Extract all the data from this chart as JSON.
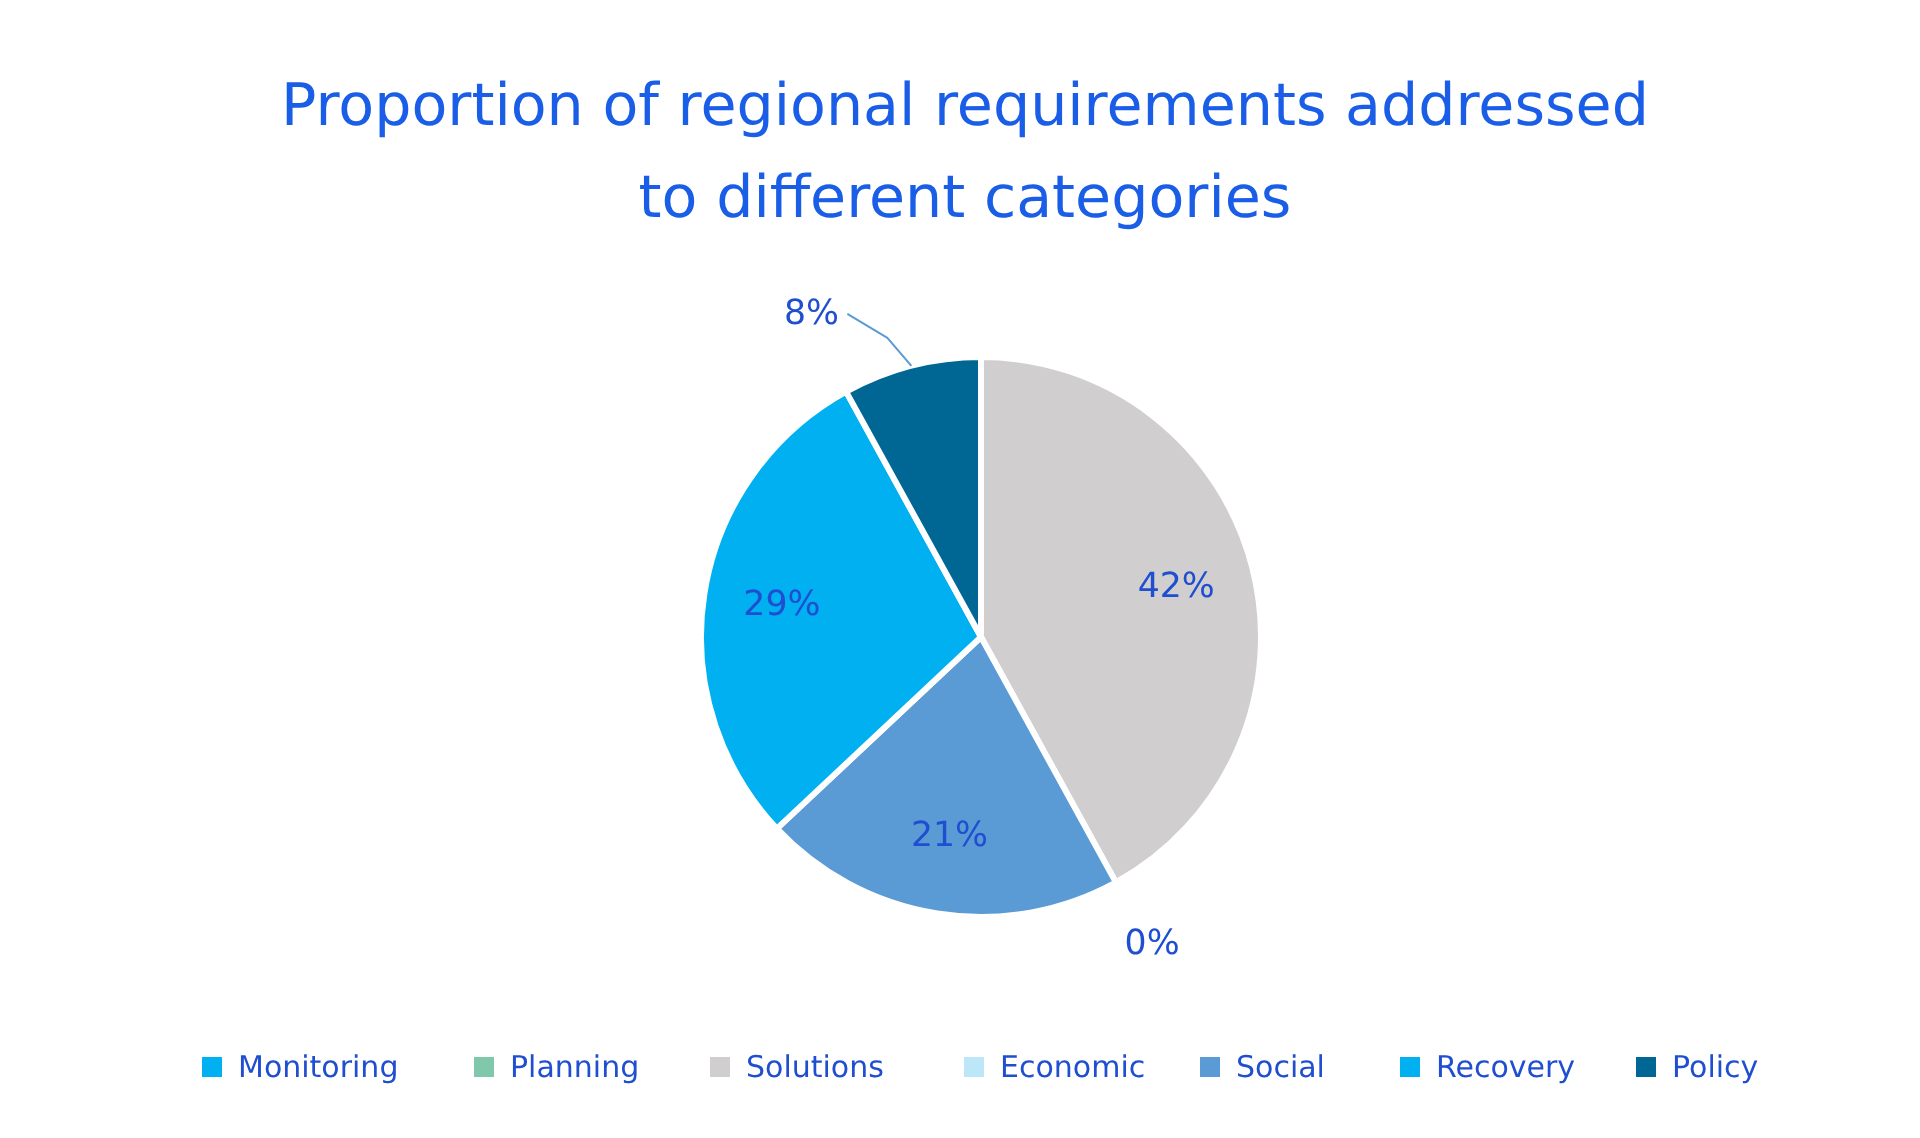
{
  "chart_data": {
    "type": "pie",
    "title": "Proportion of regional requirements addressed to different categories",
    "categories": [
      "Monitoring",
      "Planning",
      "Solutions",
      "Economic",
      "Social",
      "Recovery",
      "Policy"
    ],
    "values": [
      0,
      0,
      42,
      0,
      21,
      29,
      8
    ],
    "colors": [
      "#00b0f0",
      "#7fc8a9",
      "#d0cece",
      "#bde7f9",
      "#5b9bd5",
      "#00b0f0",
      "#006795"
    ],
    "value_labels": [
      null,
      null,
      "42%",
      "0%",
      "21%",
      "29%",
      "8%"
    ],
    "legend": "bottom"
  }
}
